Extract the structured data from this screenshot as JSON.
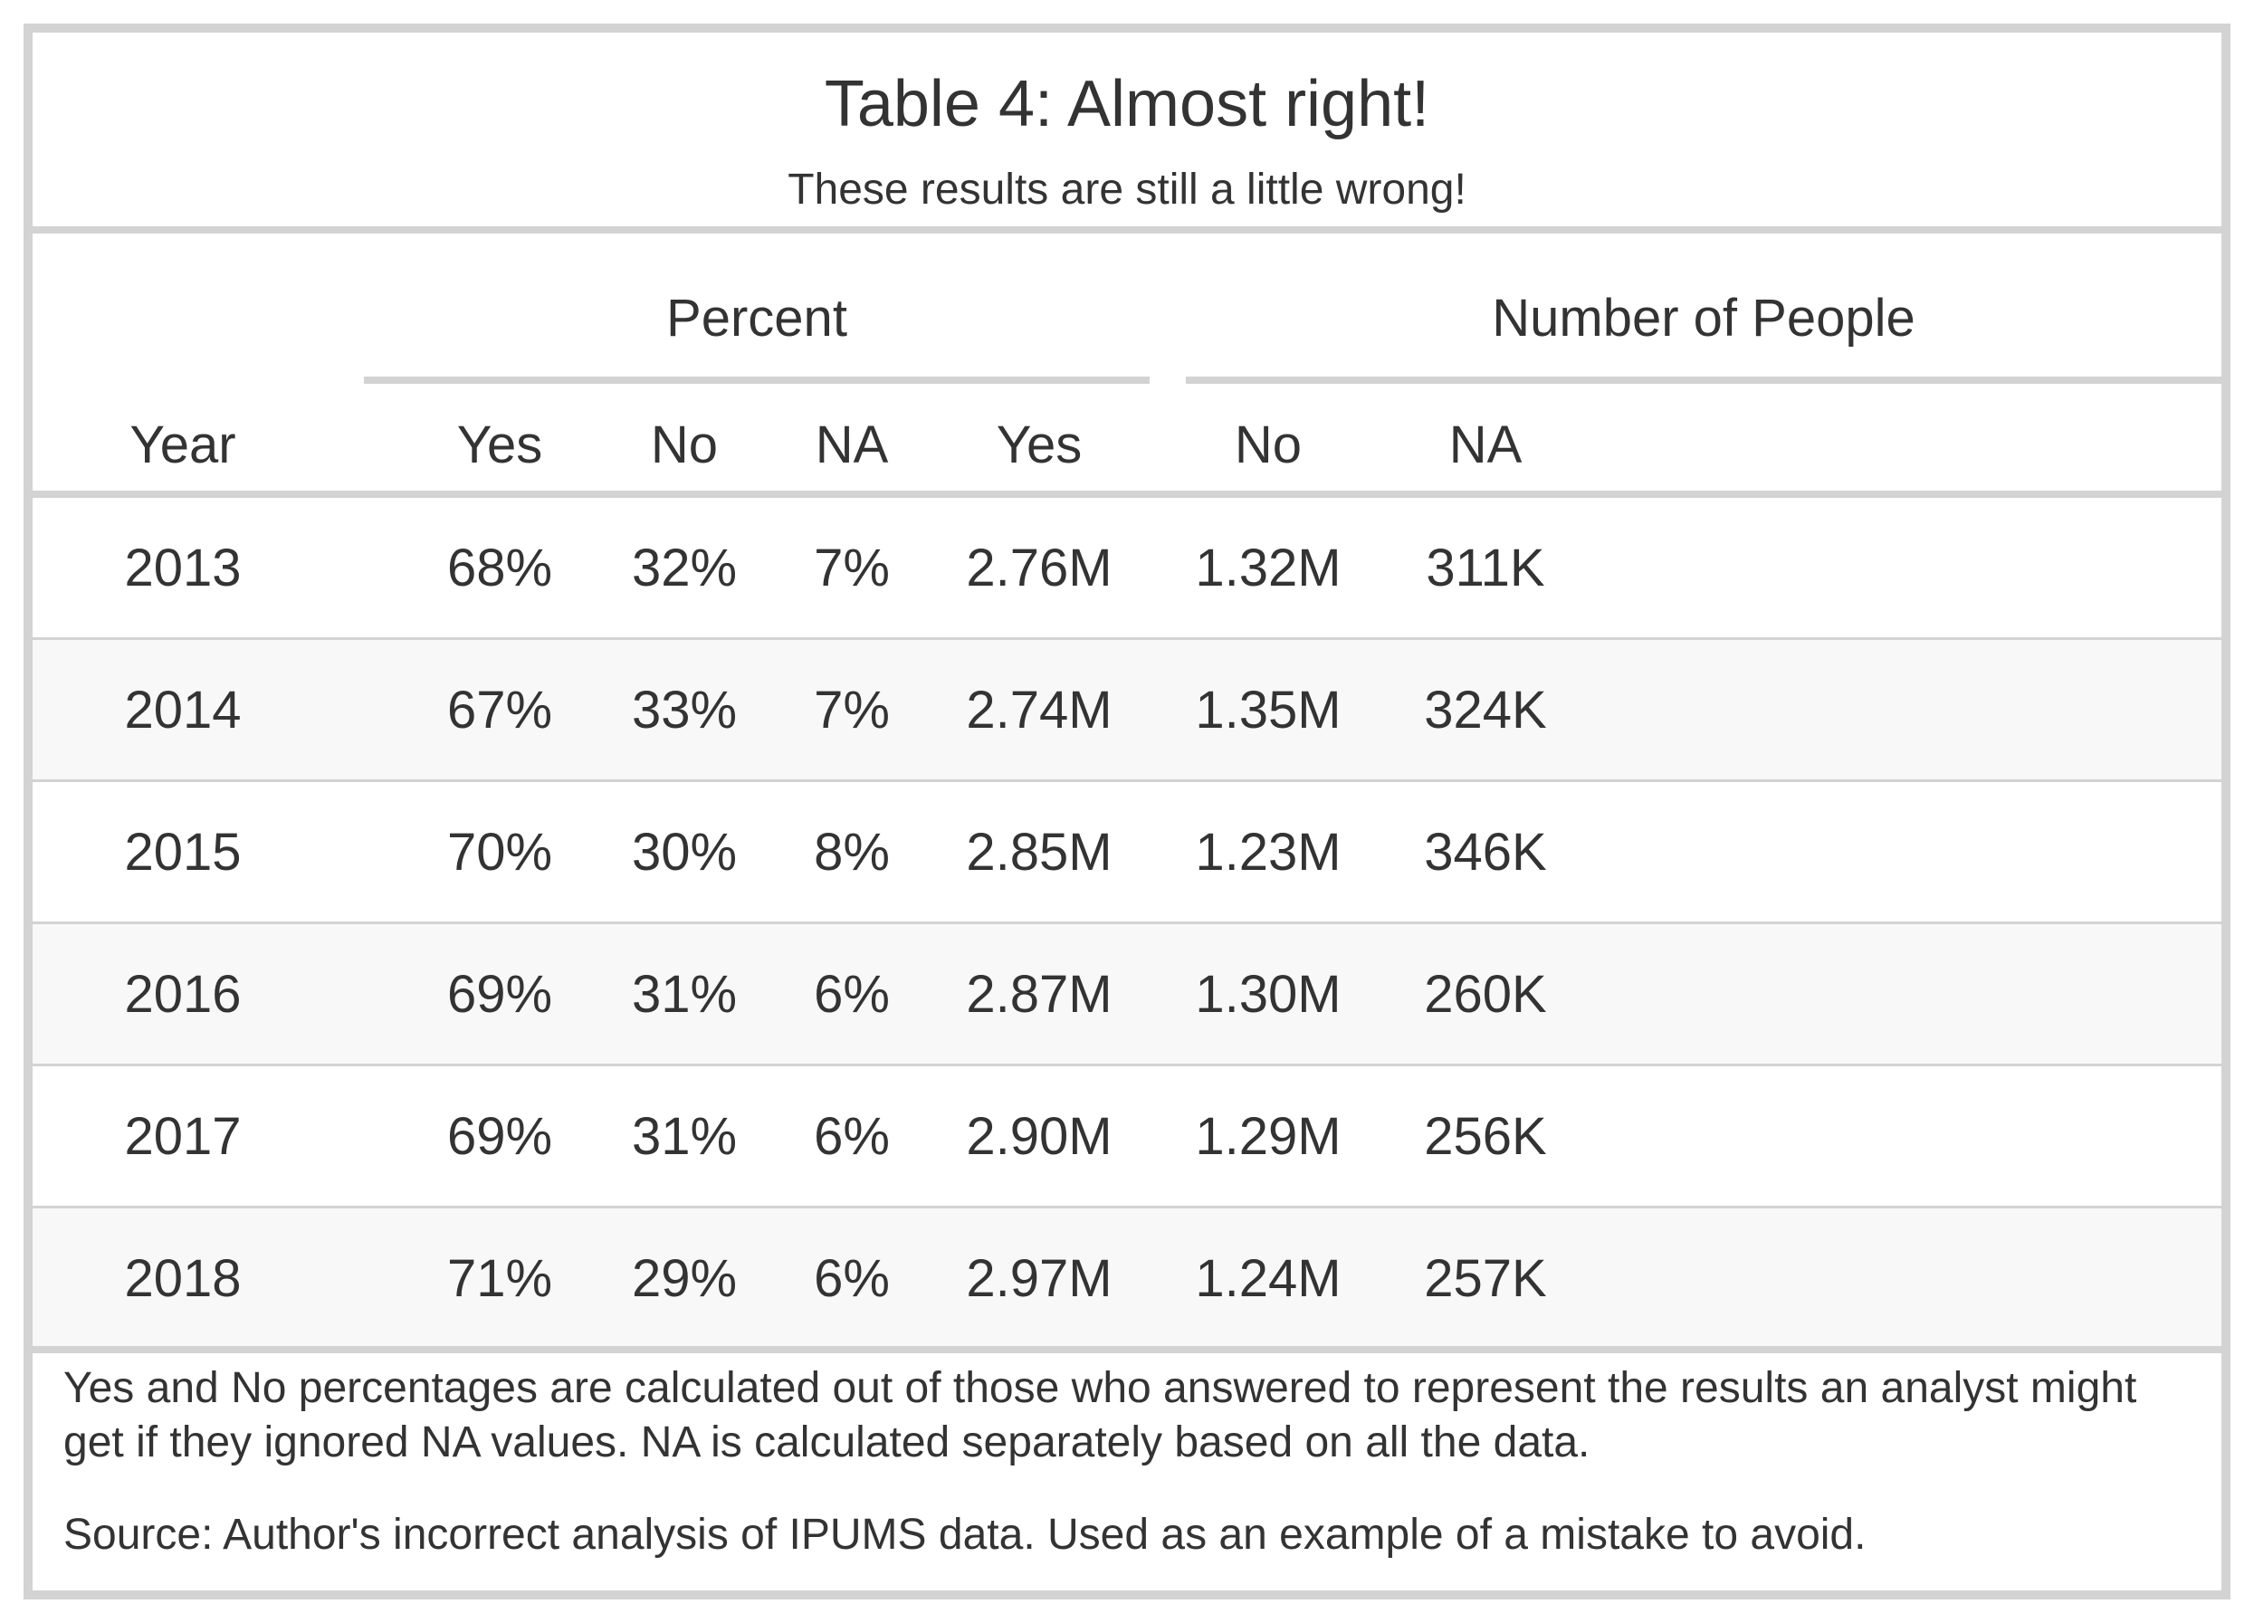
{
  "chart_data": {
    "type": "table",
    "title": "Table 4: Almost right!",
    "subtitle": "These results are still a little wrong!",
    "spanners": [
      {
        "label": "Percent",
        "columns": [
          "pct_yes",
          "pct_no",
          "pct_na"
        ]
      },
      {
        "label": "Number of People",
        "columns": [
          "n_yes",
          "n_no",
          "n_na"
        ]
      }
    ],
    "columns": [
      {
        "key": "year",
        "label": "Year"
      },
      {
        "key": "pct_yes",
        "label": "Yes"
      },
      {
        "key": "pct_no",
        "label": "No"
      },
      {
        "key": "pct_na",
        "label": "NA"
      },
      {
        "key": "n_yes",
        "label": "Yes"
      },
      {
        "key": "n_no",
        "label": "No"
      },
      {
        "key": "n_na",
        "label": "NA"
      }
    ],
    "rows": [
      {
        "year": "2013",
        "pct_yes": "68%",
        "pct_no": "32%",
        "pct_na": "7%",
        "n_yes": "2.76M",
        "n_no": "1.32M",
        "n_na": "311K"
      },
      {
        "year": "2014",
        "pct_yes": "67%",
        "pct_no": "33%",
        "pct_na": "7%",
        "n_yes": "2.74M",
        "n_no": "1.35M",
        "n_na": "324K"
      },
      {
        "year": "2015",
        "pct_yes": "70%",
        "pct_no": "30%",
        "pct_na": "8%",
        "n_yes": "2.85M",
        "n_no": "1.23M",
        "n_na": "346K"
      },
      {
        "year": "2016",
        "pct_yes": "69%",
        "pct_no": "31%",
        "pct_na": "6%",
        "n_yes": "2.87M",
        "n_no": "1.30M",
        "n_na": "260K"
      },
      {
        "year": "2017",
        "pct_yes": "69%",
        "pct_no": "31%",
        "pct_na": "6%",
        "n_yes": "2.90M",
        "n_no": "1.29M",
        "n_na": "256K"
      },
      {
        "year": "2018",
        "pct_yes": "71%",
        "pct_no": "29%",
        "pct_na": "6%",
        "n_yes": "2.97M",
        "n_no": "1.24M",
        "n_na": "257K"
      }
    ],
    "footnotes": [
      "Yes and No percentages are calculated out of those who answered to represent the results an analyst might get if they ignored NA values. NA is calculated separately based on all the data.",
      "Source: Author's incorrect analysis of IPUMS data. Used as an example of a mistake to avoid."
    ],
    "colors": {
      "rule": "#d3d3d3",
      "stripe": "#f8f8f8",
      "text": "#333333"
    }
  }
}
